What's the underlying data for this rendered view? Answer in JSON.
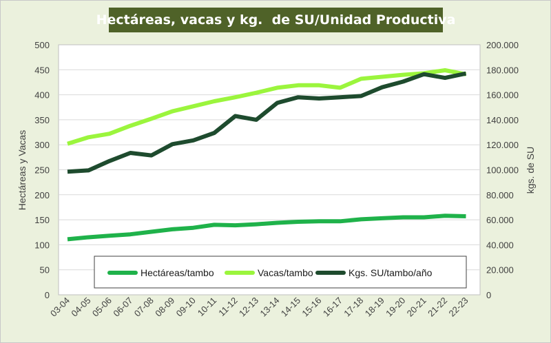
{
  "chart_data": {
    "type": "line",
    "title": "Hectáreas, vacas y kg.  de SU/Unidad Productiva",
    "categories": [
      "03-04",
      "04-05",
      "05-06",
      "06-07",
      "07-08",
      "08-09",
      "09-10",
      "10-11",
      "11-12",
      "12-13",
      "13-14",
      "14-15",
      "15-16",
      "16-17",
      "17-18",
      "18-19",
      "19-20",
      "20-21",
      "21-22",
      "22-23"
    ],
    "ylabel_left": "Hectáreas y Vacas",
    "ylabel_right": "kgs. de SU",
    "ylim_left": [
      0,
      500
    ],
    "ylim_right": [
      0,
      200000
    ],
    "yticks_left": [
      "0",
      "50",
      "100",
      "150",
      "200",
      "250",
      "300",
      "350",
      "400",
      "450",
      "500"
    ],
    "yticks_right": [
      "0",
      "20.000",
      "40.000",
      "60.000",
      "80.000",
      "100.000",
      "120.000",
      "140.000",
      "160.000",
      "180.000",
      "200.000"
    ],
    "grid": "horizontal",
    "legend_position": "bottom-inside",
    "series": [
      {
        "name": "Hectáreas/tambo",
        "axis": "left",
        "color": "#1fb24a",
        "values": [
          111,
          115,
          118,
          121,
          126,
          131,
          134,
          140,
          139,
          141,
          144,
          146,
          147,
          147,
          151,
          153,
          155,
          155,
          158,
          157
        ]
      },
      {
        "name": "Vacas/tambo",
        "axis": "left",
        "color": "#9bf53d",
        "values": [
          302,
          315,
          322,
          338,
          352,
          367,
          377,
          387,
          395,
          404,
          414,
          419,
          419,
          414,
          432,
          436,
          440,
          443,
          449,
          441
        ]
      },
      {
        "name": "Kgs. SU/tambo/año",
        "axis": "right",
        "color": "#1e4b2e",
        "values": [
          98500,
          99500,
          107000,
          113500,
          111500,
          120500,
          123500,
          129500,
          143000,
          140000,
          153500,
          158000,
          157000,
          158000,
          159000,
          166000,
          170500,
          176500,
          173500,
          177000
        ]
      }
    ]
  }
}
